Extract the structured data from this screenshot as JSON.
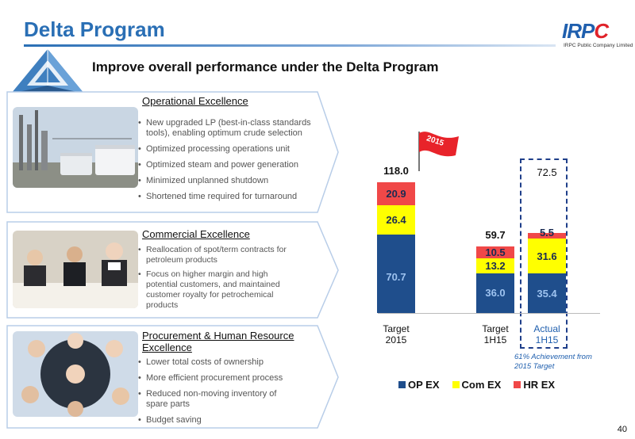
{
  "header": {
    "title": "Delta Program",
    "subtitle": "Improve overall performance under the Delta Program",
    "logo_text": "IRPC",
    "logo_subtext": "IRPC Public Company Limited"
  },
  "panels": [
    {
      "heading": "Operational Excellence",
      "bullets": [
        "New upgraded LP (best-in-class standards tools), enabling optimum crude selection",
        "Optimized processing operations unit",
        "Optimized steam and power generation",
        "Minimized unplanned shutdown",
        "Shortened time required for turnaround"
      ]
    },
    {
      "heading": "Commercial Excellence",
      "bullets": [
        "Reallocation of spot/term contracts for petroleum products",
        "Focus on higher margin and high potential customers, and maintained customer royalty for petrochemical products"
      ]
    },
    {
      "heading": "Procurement & Human Resource Excellence",
      "bullets": [
        "Lower total costs of ownership",
        "More efficient procurement process",
        "Reduced non-moving inventory of spare parts",
        "Budget saving"
      ]
    }
  ],
  "chart_data": {
    "type": "bar",
    "stacked": true,
    "categories": [
      "Target 2015",
      "Target 1H15",
      "Actual 1H15"
    ],
    "series": [
      {
        "name": "OP EX",
        "color": "#1f4e8c",
        "values": [
          70.7,
          36.0,
          35.4
        ]
      },
      {
        "name": "Com EX",
        "color": "#ffff00",
        "values": [
          26.4,
          13.2,
          31.6
        ]
      },
      {
        "name": "HR EX",
        "color": "#f04848",
        "values": [
          20.9,
          10.5,
          5.5
        ]
      }
    ],
    "totals": [
      "118.0",
      "59.7",
      "72.5"
    ],
    "flag_label": "2015",
    "annotation": "61% Achievement from 2015 Target",
    "legend_position": "bottom"
  },
  "page_number": "40"
}
